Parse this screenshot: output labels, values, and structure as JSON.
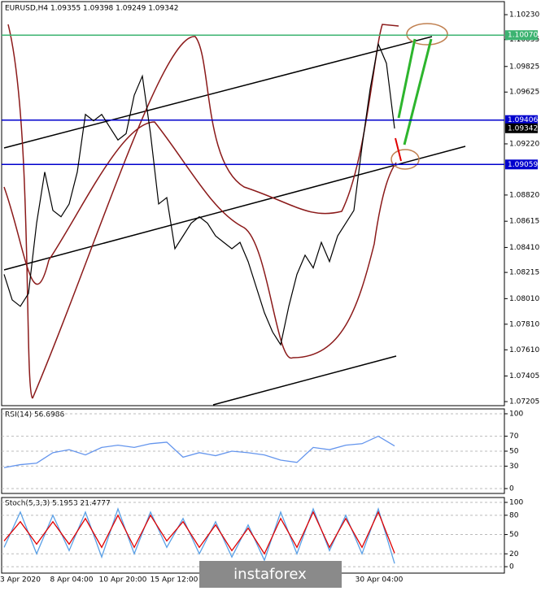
{
  "chart_data": [
    {
      "type": "line",
      "title": "EURUSD,H4 1.09355 1.09398 1.09249 1.09342",
      "series": [
        {
          "color": "#000000",
          "values": [
            1.082,
            1.08,
            1.0795,
            1.0805,
            1.086,
            1.09,
            1.087,
            1.0865,
            1.0875,
            1.09,
            1.0945,
            1.094,
            1.0945,
            1.0935,
            1.0925,
            1.093,
            1.096,
            1.0975,
            1.093,
            1.0875,
            1.088,
            1.084,
            1.085,
            1.086,
            1.0865,
            1.086,
            1.085,
            1.0845,
            1.084,
            1.0845,
            1.083,
            1.081,
            1.079,
            1.0775,
            1.0765,
            1.0795,
            1.082,
            1.0835,
            1.0825,
            1.0845,
            1.083,
            1.085,
            1.086,
            1.087,
            1.092,
            1.0965,
            1.1,
            1.0985,
            1.0934
          ]
        }
      ],
      "ylim": [
        1.07167,
        1.10332
      ],
      "yticks": [
        {
          "value": 1.1023,
          "label": "1.10230"
        },
        {
          "value": 1.10035,
          "label": "1.10035"
        },
        {
          "value": 1.09825,
          "label": "1.09825"
        },
        {
          "value": 1.09625,
          "label": "1.09625"
        },
        {
          "value": 1.0922,
          "label": "1.09220"
        },
        {
          "value": 1.0882,
          "label": "1.08820"
        },
        {
          "value": 1.08615,
          "label": "1.08615"
        },
        {
          "value": 1.0841,
          "label": "1.08410"
        },
        {
          "value": 1.08215,
          "label": "1.08215"
        },
        {
          "value": 1.0801,
          "label": "1.08010"
        },
        {
          "value": 1.0781,
          "label": "1.07810"
        },
        {
          "value": 1.0761,
          "label": "1.07610"
        },
        {
          "value": 1.07405,
          "label": "1.07405"
        },
        {
          "value": 1.07205,
          "label": "1.07205"
        }
      ],
      "levels": [
        {
          "value": 1.1007,
          "label": "1.10070",
          "color": "#3cb371"
        },
        {
          "value": 1.09406,
          "label": "1.09406",
          "color": "#0000cd"
        },
        {
          "value": 1.09059,
          "label": "1.09059",
          "color": "#0000cd"
        }
      ],
      "last_price": {
        "value": 1.09342,
        "label": "1.09342"
      },
      "x_labels": [
        "3 Apr 2020",
        "8 Apr 04:00",
        "10 Apr 20:00",
        "15 Apr 12:00",
        null,
        null,
        null,
        "30 Apr 04:00"
      ]
    },
    {
      "type": "line",
      "title": "RSI(14) 56.6986",
      "ylim": [
        -6.5,
        106.5
      ],
      "yticks": [
        100,
        70,
        50,
        30,
        0
      ],
      "series": [
        {
          "color": "#6495ed",
          "values": [
            28,
            32,
            34,
            48,
            52,
            45,
            55,
            58,
            55,
            60,
            62,
            42,
            48,
            44,
            50,
            48,
            45,
            38,
            35,
            55,
            52,
            58,
            60,
            70,
            57
          ]
        }
      ]
    },
    {
      "type": "line",
      "title": "Stoch(5,3,3) 5.1953 21.4777",
      "ylim": [
        -10,
        107.6
      ],
      "yticks": [
        100,
        80,
        50,
        20,
        0
      ],
      "series": [
        {
          "color": "#5aa0e6",
          "values": [
            30,
            85,
            20,
            80,
            25,
            85,
            15,
            90,
            20,
            85,
            30,
            75,
            20,
            70,
            15,
            65,
            10,
            85,
            20,
            90,
            25,
            80,
            20,
            90,
            5
          ]
        },
        {
          "color": "#e00000",
          "values": [
            40,
            70,
            35,
            70,
            35,
            75,
            30,
            80,
            30,
            80,
            40,
            70,
            30,
            65,
            25,
            60,
            20,
            75,
            30,
            85,
            30,
            75,
            30,
            85,
            21
          ]
        }
      ]
    }
  ],
  "watermark": "instaforex"
}
